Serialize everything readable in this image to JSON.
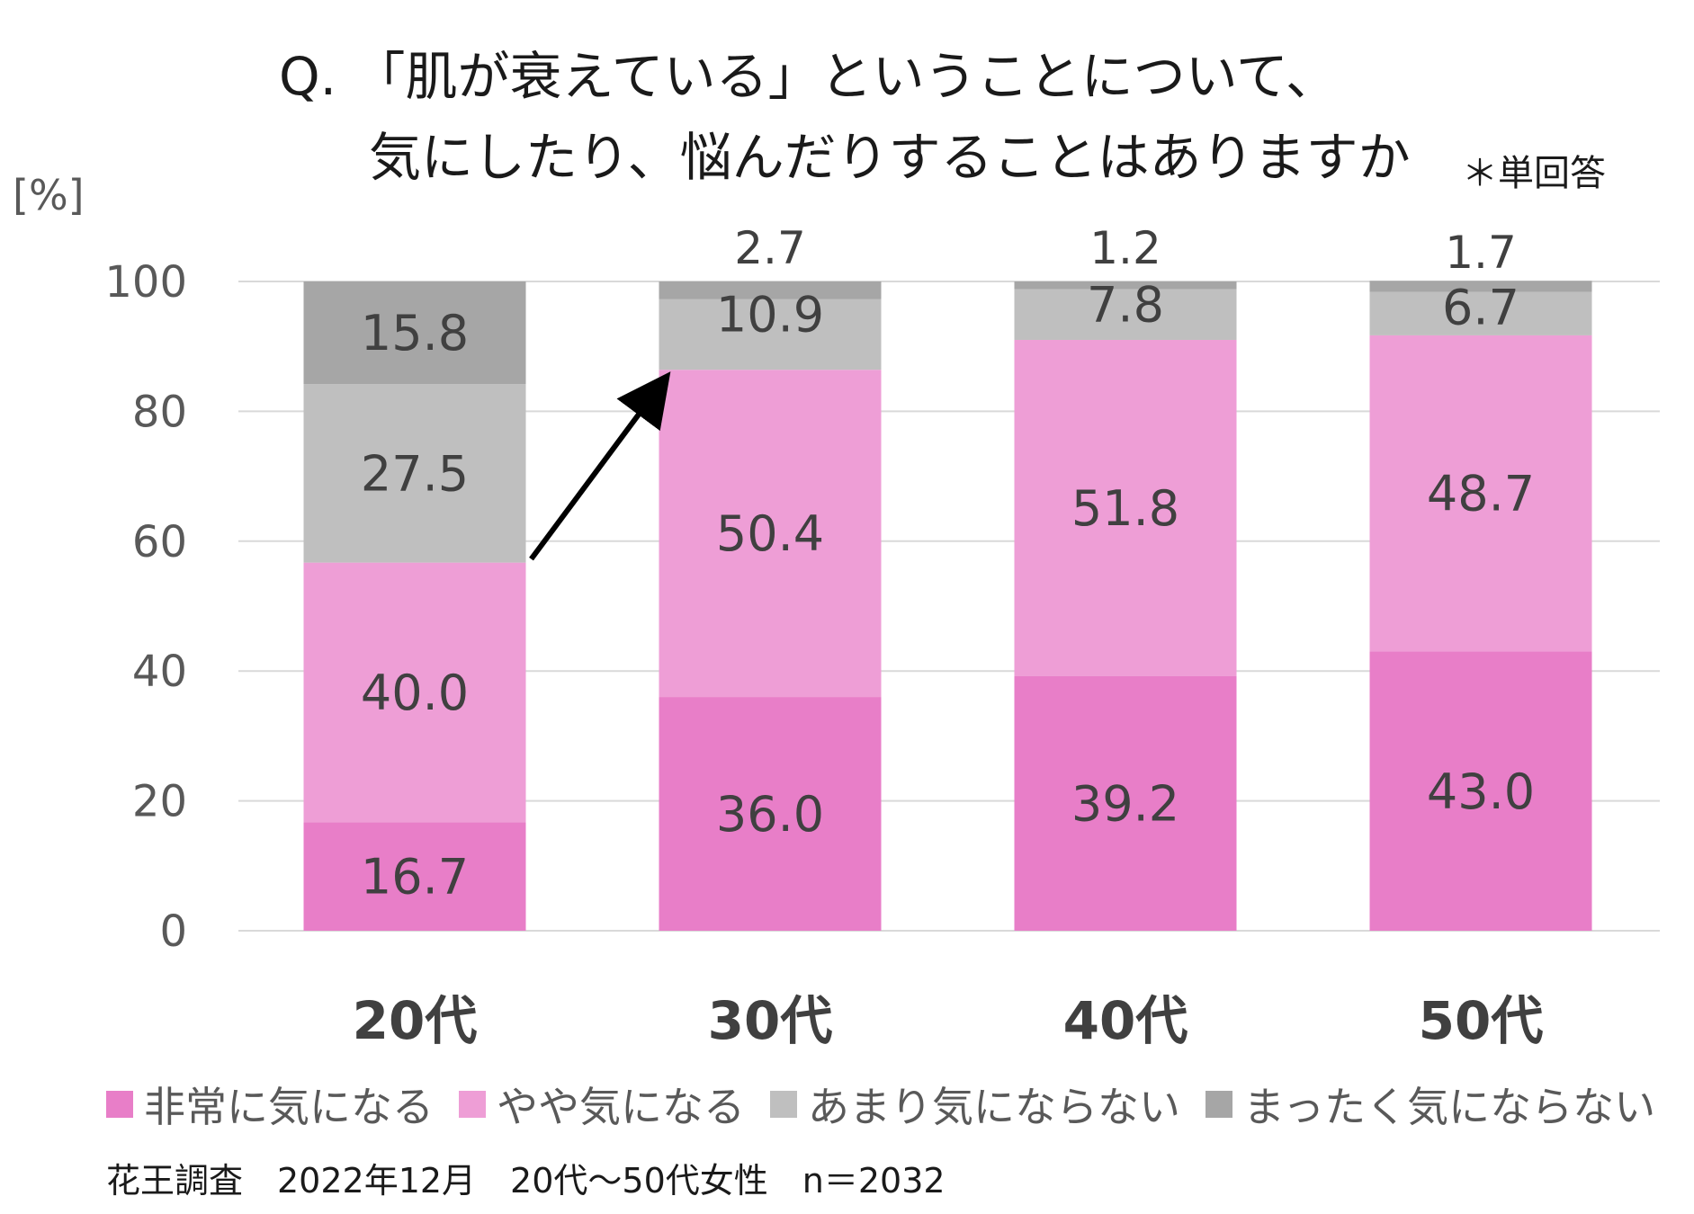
{
  "chart_data": {
    "type": "bar",
    "stacked": true,
    "title_line1": "Q. 「肌が衰えている」ということについて、",
    "title_line2": "気にしたり、悩んだりすることはありますか",
    "note": "＊単回答",
    "ylabel": "[%]",
    "ylim": [
      0,
      100
    ],
    "yticks": [
      "0",
      "20",
      "40",
      "60",
      "80",
      "100"
    ],
    "categories": [
      "20代",
      "30代",
      "40代",
      "50代"
    ],
    "series": [
      {
        "name": "非常に気になる",
        "color": "#e87ec8",
        "values": [
          16.7,
          36.0,
          39.2,
          43.0
        ],
        "labels": [
          "16.7",
          "36.0",
          "39.2",
          "43.0"
        ]
      },
      {
        "name": "やや気になる",
        "color": "#ee9ed6",
        "values": [
          40.0,
          50.4,
          51.8,
          48.7
        ],
        "labels": [
          "40.0",
          "50.4",
          "51.8",
          "48.7"
        ]
      },
      {
        "name": "あまり気にならない",
        "color": "#bfbfbf",
        "values": [
          27.5,
          10.9,
          7.8,
          6.7
        ],
        "labels": [
          "27.5",
          "10.9",
          "7.8",
          "6.7"
        ]
      },
      {
        "name": "まったく気にならない",
        "color": "#a6a6a6",
        "values": [
          15.8,
          2.7,
          1.2,
          1.7
        ],
        "labels": [
          "15.8",
          "2.7",
          "1.2",
          "1.7"
        ]
      }
    ],
    "gridlines": true,
    "legend_position": "bottom",
    "annotation": "arrow from 20代 top of やや気になる to 30代 top of やや気になる"
  },
  "source": "花王調査　2022年12月　20代～50代女性　n＝2032"
}
